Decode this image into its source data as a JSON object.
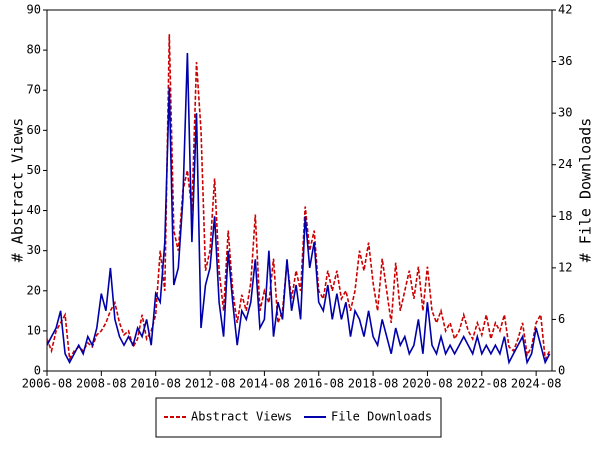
{
  "chart_data": {
    "type": "line",
    "x": [
      "2006-08",
      "2006-10",
      "2006-12",
      "2007-02",
      "2007-04",
      "2007-06",
      "2007-08",
      "2007-10",
      "2007-12",
      "2008-02",
      "2008-04",
      "2008-06",
      "2008-08",
      "2008-10",
      "2008-12",
      "2009-02",
      "2009-04",
      "2009-06",
      "2009-08",
      "2009-10",
      "2009-12",
      "2010-02",
      "2010-04",
      "2010-06",
      "2010-08",
      "2010-10",
      "2010-12",
      "2011-02",
      "2011-04",
      "2011-06",
      "2011-08",
      "2011-10",
      "2011-12",
      "2012-02",
      "2012-04",
      "2012-06",
      "2012-08",
      "2012-10",
      "2012-12",
      "2013-02",
      "2013-04",
      "2013-06",
      "2013-08",
      "2013-10",
      "2013-12",
      "2014-02",
      "2014-04",
      "2014-06",
      "2014-08",
      "2014-10",
      "2014-12",
      "2015-02",
      "2015-04",
      "2015-06",
      "2015-08",
      "2015-10",
      "2015-12",
      "2016-02",
      "2016-04",
      "2016-06",
      "2016-08",
      "2016-10",
      "2016-12",
      "2017-02",
      "2017-04",
      "2017-06",
      "2017-08",
      "2017-10",
      "2017-12",
      "2018-02",
      "2018-04",
      "2018-06",
      "2018-08",
      "2018-10",
      "2018-12",
      "2019-02",
      "2019-04",
      "2019-06",
      "2019-08",
      "2019-10",
      "2019-12",
      "2020-02",
      "2020-04",
      "2020-06",
      "2020-08",
      "2020-10",
      "2020-12",
      "2021-02",
      "2021-04",
      "2021-06",
      "2021-08",
      "2021-10",
      "2021-12",
      "2022-02",
      "2022-04",
      "2022-06",
      "2022-08",
      "2022-10",
      "2022-12",
      "2023-02",
      "2023-04",
      "2023-06",
      "2023-08",
      "2023-10",
      "2023-12",
      "2024-02",
      "2024-04",
      "2024-06",
      "2024-08",
      "2024-10",
      "2024-12",
      "2025-02"
    ],
    "xlim": [
      "2006-08",
      "2025-03"
    ],
    "xticks": [
      "2006-08",
      "2008-08",
      "2010-08",
      "2012-08",
      "2014-08",
      "2016-08",
      "2018-08",
      "2020-08",
      "2022-08",
      "2024-08"
    ],
    "ylim": [
      0,
      90
    ],
    "yticks": [
      0,
      10,
      20,
      30,
      40,
      50,
      60,
      70,
      80,
      90
    ],
    "y2lim": [
      0,
      42
    ],
    "y2ticks": [
      0,
      6,
      12,
      18,
      24,
      30,
      36,
      42
    ],
    "ylabel": "# Abstract Views",
    "y2label": "# File Downloads",
    "series": [
      {
        "name": "Abstract Views",
        "color": "#cc0000",
        "dash": true,
        "values": [
          8,
          5,
          10,
          12,
          14,
          3,
          5,
          6,
          5,
          7,
          6,
          9,
          10,
          12,
          15,
          17,
          12,
          9,
          10,
          6,
          8,
          14,
          8,
          10,
          14,
          30,
          20,
          84,
          35,
          30,
          45,
          50,
          40,
          77,
          60,
          25,
          30,
          48,
          25,
          15,
          35,
          20,
          12,
          19,
          15,
          22,
          39,
          15,
          20,
          17,
          28,
          12,
          15,
          27,
          18,
          25,
          20,
          41,
          30,
          35,
          20,
          18,
          25,
          20,
          25,
          18,
          20,
          15,
          20,
          30,
          25,
          32,
          22,
          15,
          28,
          20,
          12,
          27,
          15,
          20,
          25,
          18,
          26,
          15,
          26,
          15,
          12,
          15,
          10,
          12,
          8,
          10,
          14,
          10,
          8,
          12,
          9,
          14,
          8,
          12,
          10,
          14,
          6,
          5,
          8,
          12,
          4,
          6,
          12,
          14,
          3,
          5
        ]
      },
      {
        "name": "File Downloads",
        "color": "#0000aa",
        "axis": "y2",
        "values": [
          3,
          4,
          5,
          7,
          2,
          1,
          2,
          3,
          2,
          4,
          3,
          5,
          9,
          7,
          12,
          6,
          4,
          3,
          4,
          3,
          5,
          4,
          6,
          3,
          9,
          8,
          15,
          33,
          10,
          12,
          20,
          37,
          15,
          30,
          5,
          10,
          12,
          18,
          8,
          4,
          14,
          8,
          3,
          7,
          6,
          8,
          13,
          5,
          6,
          14,
          4,
          8,
          6,
          13,
          7,
          10,
          6,
          18,
          12,
          15,
          8,
          7,
          10,
          6,
          9,
          6,
          8,
          4,
          7,
          6,
          4,
          7,
          4,
          3,
          6,
          4,
          2,
          5,
          3,
          4,
          2,
          3,
          6,
          2,
          8,
          3,
          2,
          4,
          2,
          3,
          2,
          3,
          4,
          3,
          2,
          4,
          2,
          3,
          2,
          3,
          2,
          4,
          1,
          2,
          3,
          4,
          1,
          2,
          5,
          3,
          1,
          2
        ]
      }
    ]
  }
}
